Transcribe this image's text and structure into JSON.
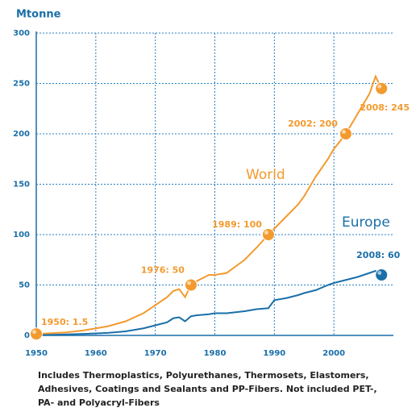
{
  "chart_data": {
    "type": "line",
    "y_label": "Mtonne",
    "x": [
      1950,
      1952,
      1955,
      1958,
      1960,
      1962,
      1965,
      1968,
      1970,
      1972,
      1973,
      1974,
      1975,
      1976,
      1977,
      1979,
      1980,
      1982,
      1985,
      1987,
      1989,
      1990,
      1992,
      1994,
      1995,
      1997,
      1999,
      2000,
      2002,
      2004,
      2006,
      2007,
      2008
    ],
    "series": [
      {
        "name": "World",
        "color": "#f39a2e",
        "values": [
          1.5,
          2,
          3,
          5,
          7,
          9,
          14,
          22,
          30,
          38,
          44,
          46,
          38,
          50,
          54,
          60,
          60,
          62,
          75,
          87,
          100,
          106,
          118,
          130,
          138,
          158,
          175,
          185,
          200,
          220,
          240,
          257,
          245
        ]
      },
      {
        "name": "Europe",
        "color": "#1a6fa8",
        "values": [
          0,
          0.5,
          1,
          1.5,
          2,
          2.5,
          4,
          7,
          10,
          13,
          17,
          18,
          14,
          19,
          20,
          21,
          22,
          22,
          24,
          26,
          27,
          35,
          37,
          40,
          42,
          45,
          50,
          52,
          55,
          58,
          62,
          64,
          60
        ]
      }
    ],
    "annotations": [
      {
        "series": 0,
        "x": 1950,
        "value": 1.5,
        "label": "1950: 1.5"
      },
      {
        "series": 0,
        "x": 1976,
        "value": 50,
        "label": "1976: 50"
      },
      {
        "series": 0,
        "x": 1989,
        "value": 100,
        "label": "1989: 100"
      },
      {
        "series": 0,
        "x": 2002,
        "value": 200,
        "label": "2002: 200"
      },
      {
        "series": 0,
        "x": 2008,
        "value": 245,
        "label": "2008: 245"
      },
      {
        "series": 1,
        "x": 2008,
        "value": 60,
        "label": "2008: 60"
      }
    ],
    "xlim": [
      1950,
      2010
    ],
    "ylim": [
      0,
      300
    ],
    "xticks": [
      1950,
      1960,
      1970,
      1980,
      1990,
      2000
    ],
    "yticks": [
      0,
      50,
      100,
      150,
      200,
      250,
      300
    ],
    "grid": true,
    "footnote": [
      "Includes Thermoplastics, Polyurethanes, Thermosets, Elastomers,",
      "Adhesives, Coatings and Sealants and PP-Fibers. Not included PET-,",
      "PA- and Polyacryl-Fibers"
    ]
  }
}
